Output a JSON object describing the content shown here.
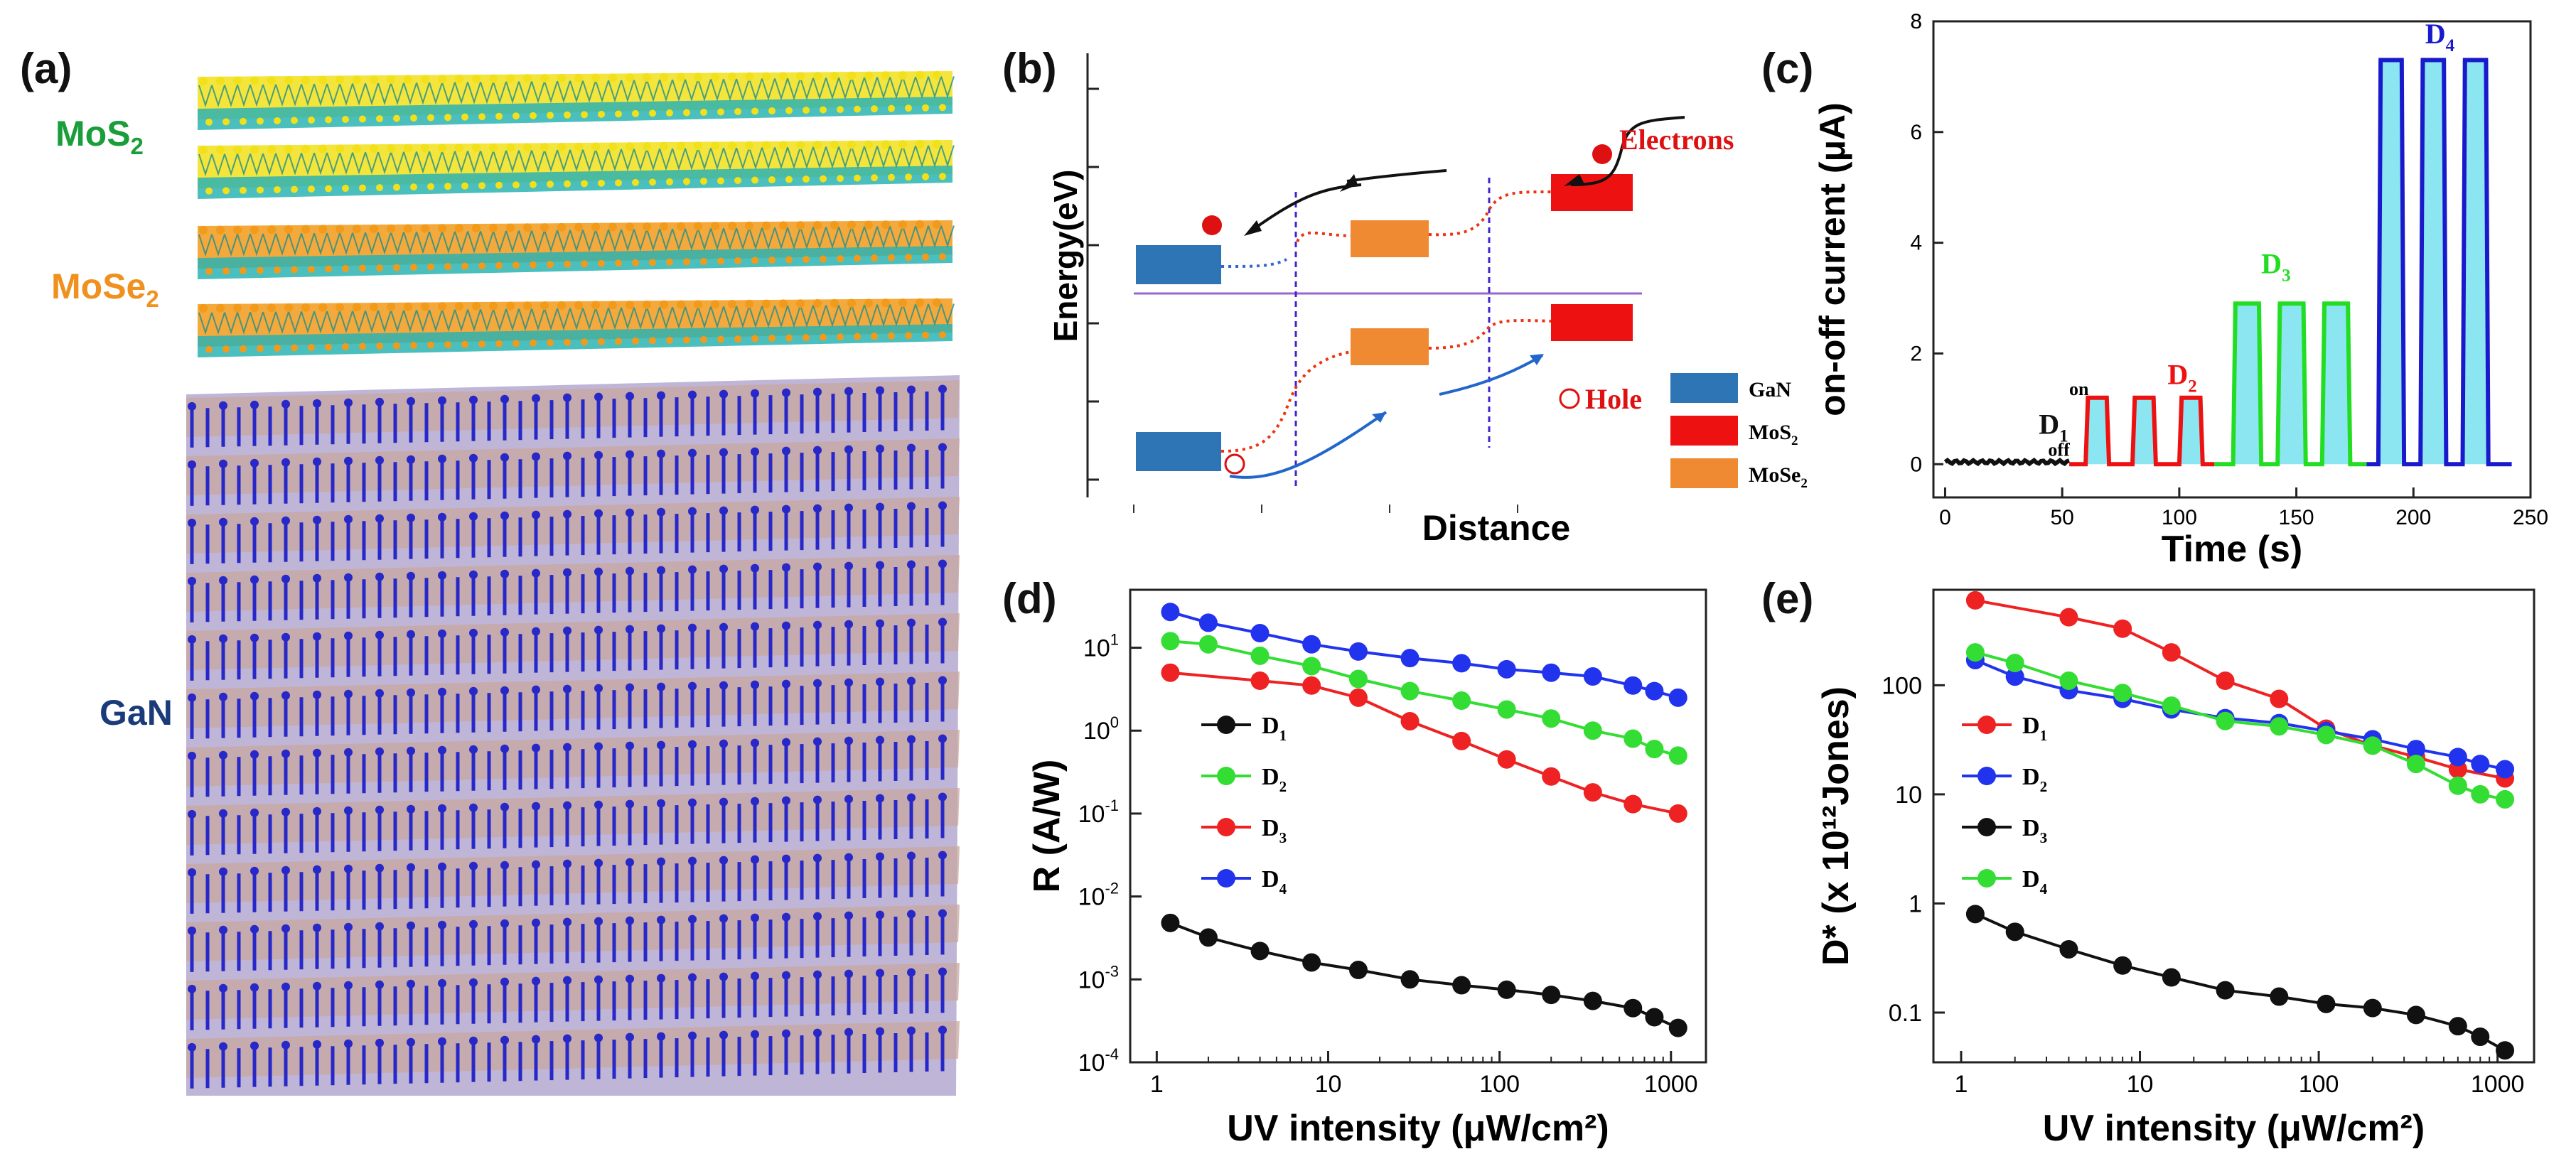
{
  "panel_labels": {
    "a": "(a)",
    "b": "(b)",
    "c": "(c)",
    "d": "(d)",
    "e": "(e)"
  },
  "structure": {
    "layer_labels": [
      {
        "main": "MoS",
        "sub": "2",
        "color": "#1a9e3a"
      },
      {
        "main": "MoSe",
        "sub": "2",
        "color": "#f0901e"
      },
      {
        "main": "GaN",
        "sub": "",
        "color": "#1a3a7a"
      }
    ],
    "colors": {
      "mo": "#2bb3b3",
      "s": "#f2e01a",
      "se": "#f29a1a",
      "ga": "#c8a8a0",
      "n": "#2828c8"
    }
  },
  "band_diagram": {
    "ylabel": "Energy(eV)",
    "xlabel": "Distance",
    "electrons_label": "Electrons",
    "hole_label": "Hole",
    "legend": [
      {
        "main": "GaN",
        "sub": "",
        "color": "#2e75b6"
      },
      {
        "main": "MoS",
        "sub": "2",
        "color": "#ee1111"
      },
      {
        "main": "MoSe",
        "sub": "2",
        "color": "#ef8a33"
      }
    ]
  },
  "chart_data": [
    {
      "id": "c",
      "type": "line",
      "title": "",
      "xlabel": "Time (s)",
      "ylabel": "on-off current (μA)",
      "xlim": [
        -5,
        250
      ],
      "ylim": [
        -0.6,
        8
      ],
      "xticks": [
        0,
        50,
        100,
        150,
        200,
        250
      ],
      "yticks": [
        0,
        2,
        4,
        6,
        8
      ],
      "annotations": [
        "on",
        "off"
      ],
      "series": [
        {
          "name": "D",
          "sub": "1",
          "color": "#111111",
          "pulses": [],
          "amplitude": 0.0,
          "x_range": [
            0,
            53
          ]
        },
        {
          "name": "D",
          "sub": "2",
          "color": "#ee1111",
          "pulses": [
            [
              60,
              70
            ],
            [
              80,
              90
            ],
            [
              100,
              110
            ]
          ],
          "amplitude": 1.2,
          "x_range": [
            53,
            115
          ]
        },
        {
          "name": "D",
          "sub": "3",
          "color": "#22dd22",
          "pulses": [
            [
              123,
              135
            ],
            [
              142,
              154
            ],
            [
              161,
              173
            ]
          ],
          "amplitude": 2.9,
          "x_range": [
            115,
            180
          ]
        },
        {
          "name": "D",
          "sub": "4",
          "color": "#1a1acc",
          "pulses": [
            [
              185,
              196
            ],
            [
              203,
              214
            ],
            [
              221,
              232
            ]
          ],
          "amplitude": 7.3,
          "x_range": [
            180,
            242
          ]
        }
      ],
      "highlight_color": "#66ddee"
    },
    {
      "id": "d",
      "type": "line",
      "title": "",
      "xlabel": "UV intensity (μW/cm²)",
      "ylabel": "R (A/W)",
      "xscale": "log",
      "yscale": "log",
      "xlim": [
        0.7,
        1600
      ],
      "ylim": [
        0.0001,
        50
      ],
      "xticks": [
        1,
        10,
        100,
        1000
      ],
      "yticks": [
        0.0001,
        0.001,
        0.01,
        0.1,
        1,
        10
      ],
      "ytick_labels": [
        [
          "10",
          "-4"
        ],
        [
          "10",
          "-3"
        ],
        [
          "10",
          "-2"
        ],
        [
          "10",
          "-1"
        ],
        [
          "10",
          "0"
        ],
        [
          "10",
          "1"
        ]
      ],
      "x": [
        1.2,
        2,
        4,
        8,
        15,
        30,
        60,
        110,
        200,
        350,
        600,
        800,
        1100
      ],
      "legend_order": [
        "D1",
        "D2",
        "D3",
        "D4"
      ],
      "series": [
        {
          "name": "D",
          "sub": "1",
          "color": "#111111",
          "values": [
            0.0048,
            0.0032,
            0.0022,
            0.0016,
            0.0013,
            0.001,
            0.00085,
            0.00075,
            0.00065,
            0.00055,
            0.00045,
            0.00035,
            0.00026
          ]
        },
        {
          "name": "D",
          "sub": "2",
          "color": "#33dd33",
          "values": [
            12,
            11,
            8,
            6,
            4.2,
            3,
            2.3,
            1.8,
            1.4,
            1.0,
            0.8,
            0.6,
            0.5
          ]
        },
        {
          "name": "D",
          "sub": "3",
          "color": "#ee2222",
          "values": [
            5,
            null,
            4,
            3.5,
            2.5,
            1.3,
            0.75,
            0.45,
            0.28,
            0.18,
            0.13,
            null,
            0.1
          ]
        },
        {
          "name": "D",
          "sub": "4",
          "color": "#2233ee",
          "values": [
            27,
            20,
            15,
            11,
            9,
            7.5,
            6.5,
            5.5,
            5,
            4.5,
            3.5,
            3,
            2.5
          ]
        }
      ]
    },
    {
      "id": "e",
      "type": "line",
      "title": "",
      "xlabel": "UV intensity (μW/cm²)",
      "ylabel": "D* (x 10¹²Jones)",
      "xscale": "log",
      "yscale": "log",
      "xlim": [
        0.7,
        1600
      ],
      "ylim": [
        0.035,
        750
      ],
      "xticks": [
        1,
        10,
        100,
        1000
      ],
      "yticks": [
        0.1,
        1,
        10,
        100
      ],
      "ytick_labels": [
        [
          "0.1",
          ""
        ],
        [
          "1",
          ""
        ],
        [
          "10",
          ""
        ],
        [
          "100",
          ""
        ]
      ],
      "x": [
        1.2,
        2,
        4,
        8,
        15,
        30,
        60,
        110,
        200,
        350,
        600,
        800,
        1100
      ],
      "legend_order": [
        "D1",
        "D2",
        "D3",
        "D4"
      ],
      "series": [
        {
          "name": "D",
          "sub": "1",
          "color": "#ee2222",
          "values": [
            600,
            null,
            420,
            330,
            200,
            110,
            75,
            40,
            28,
            22,
            17,
            null,
            14
          ]
        },
        {
          "name": "D",
          "sub": "2",
          "color": "#2233ee",
          "values": [
            170,
            120,
            90,
            75,
            60,
            50,
            45,
            38,
            32,
            26,
            22,
            19,
            17
          ]
        },
        {
          "name": "D",
          "sub": "3",
          "color": "#111111",
          "values": [
            0.8,
            0.55,
            0.38,
            0.27,
            0.21,
            0.16,
            0.14,
            0.12,
            0.11,
            0.095,
            0.075,
            0.06,
            0.045
          ]
        },
        {
          "name": "D",
          "sub": "4",
          "color": "#33dd33",
          "values": [
            200,
            160,
            110,
            85,
            65,
            47,
            42,
            35,
            28,
            19,
            12,
            10,
            9
          ]
        }
      ]
    }
  ]
}
